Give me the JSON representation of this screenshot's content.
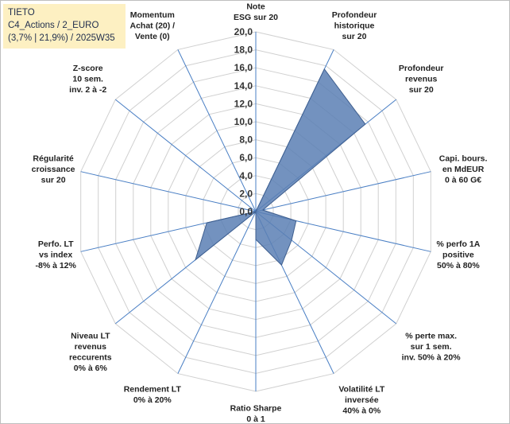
{
  "title": {
    "line1": "TIETO",
    "line2": "C4_Actions / 2_EURO",
    "line3": "(3,7% | 21,9%) / 2025W35"
  },
  "chart_data": {
    "type": "radar",
    "range": [
      0,
      20
    ],
    "ticks": [
      "0,0",
      "2,0",
      "4,0",
      "6,0",
      "8,0",
      "10,0",
      "12,0",
      "14,0",
      "16,0",
      "18,0",
      "20,0"
    ],
    "grid": true,
    "axes": [
      {
        "label": [
          "Note",
          "ESG sur 20"
        ]
      },
      {
        "label": [
          "Profondeur",
          "historique",
          "sur 20"
        ]
      },
      {
        "label": [
          "Profondeur",
          "revenus",
          "sur 20"
        ]
      },
      {
        "label": [
          "Capi. bours.",
          "en MdEUR",
          "0 à 60 G€"
        ]
      },
      {
        "label": [
          "% perfo 1A",
          "positive",
          "50% à 80%"
        ]
      },
      {
        "label": [
          "% perte max.",
          "sur 1 sem.",
          "inv. 50% à 20%"
        ]
      },
      {
        "label": [
          "Volatilité LT",
          "inversée",
          "40% à 0%"
        ]
      },
      {
        "label": [
          "Ratio Sharpe",
          "0 à 1"
        ]
      },
      {
        "label": [
          "Rendement LT",
          "0% à 20%"
        ]
      },
      {
        "label": [
          "Niveau LT",
          "revenus",
          "reccurents",
          "0% à 6%"
        ]
      },
      {
        "label": [
          "Perfo. LT",
          "vs index",
          "-8% à 12%"
        ]
      },
      {
        "label": [
          "Régularité",
          "croissance",
          "sur 20"
        ]
      },
      {
        "label": [
          "Z-score",
          "10 sem.",
          "inv. 2 à -2"
        ]
      },
      {
        "label": [
          "Momentum",
          "Achat (20) /",
          "Vente (0)"
        ]
      }
    ],
    "series": [
      {
        "values": [
          0,
          17.6,
          15.6,
          0.8,
          4.6,
          5.1,
          6.6,
          3.1,
          0,
          8.6,
          5.6,
          0,
          0,
          0
        ],
        "color": "#5b7fb4"
      }
    ]
  }
}
